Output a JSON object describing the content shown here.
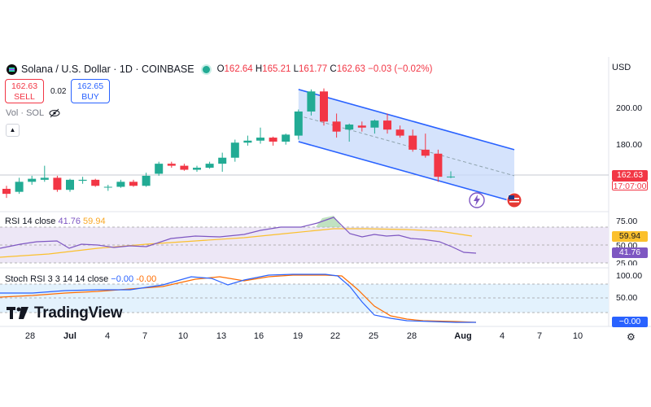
{
  "header": {
    "title": "Solana / U.S. Dollar · 1D · COINBASE",
    "ohlc": {
      "o_key": "O",
      "o_val": "162.64",
      "h_key": "H",
      "h_val": "165.21",
      "l_key": "L",
      "l_val": "161.77",
      "c_key": "C",
      "c_val": "162.63",
      "change": "−0.03 (−0.02%)"
    },
    "currency": "USD"
  },
  "trade": {
    "sell_price": "162.63",
    "sell_label": "SELL",
    "spread": "0.02",
    "buy_price": "162.65",
    "buy_label": "BUY"
  },
  "volume_label": "Vol · SOL",
  "price_axis": {
    "ticks": [
      "200.00",
      "180.00"
    ],
    "last_price": "162.63",
    "countdown": "17:07:00"
  },
  "rsi": {
    "label": "RSI",
    "params": "14 close",
    "value": "41.76",
    "ma_value": "59.94",
    "axis": [
      "75.00",
      "50.00",
      "25.00"
    ]
  },
  "stoch": {
    "label": "Stoch RSI",
    "params": "3 3 14 14 close",
    "k_value": "−0.00",
    "d_value": "-0.00",
    "axis": [
      "100.00",
      "50.00"
    ],
    "tag": "−0.00"
  },
  "brand": "TradingView",
  "x_axis": [
    "28",
    "Jul",
    "4",
    "7",
    "10",
    "13",
    "16",
    "19",
    "22",
    "25",
    "28",
    "Aug",
    "4",
    "7",
    "10"
  ],
  "colors": {
    "up": "#22ab94",
    "down": "#f23645",
    "rsi": "#7e57c2",
    "rsi_ma": "#fbc02d",
    "stoch_k": "#2962ff",
    "stoch_d": "#ff6d00",
    "channel_fill": "#c7d9fb",
    "channel_line": "#2962ff"
  },
  "icons": [
    "solana-logo-icon",
    "live-status-icon",
    "eye-off-icon",
    "chevron-up-icon",
    "lightning-icon",
    "us-flag-icon",
    "gear-icon",
    "tradingview-logo-icon"
  ],
  "chart_data": {
    "type": "candlestick",
    "candles": [
      {
        "o": 156.5,
        "h": 158.0,
        "l": 152.0,
        "c": 154.0
      },
      {
        "o": 155.0,
        "h": 162.0,
        "l": 154.0,
        "c": 160.0
      },
      {
        "o": 160.0,
        "h": 163.0,
        "l": 158.5,
        "c": 161.5
      },
      {
        "o": 161.0,
        "h": 168.0,
        "l": 160.0,
        "c": 162.0
      },
      {
        "o": 162.0,
        "h": 163.0,
        "l": 155.0,
        "c": 156.0
      },
      {
        "o": 156.0,
        "h": 161.5,
        "l": 155.0,
        "c": 161.0
      },
      {
        "o": 160.5,
        "h": 162.5,
        "l": 159.0,
        "c": 161.0
      },
      {
        "o": 161.0,
        "h": 161.5,
        "l": 157.5,
        "c": 158.0
      },
      {
        "o": 157.5,
        "h": 158.5,
        "l": 155.5,
        "c": 157.5
      },
      {
        "o": 157.5,
        "h": 161.0,
        "l": 157.0,
        "c": 160.0
      },
      {
        "o": 160.0,
        "h": 161.0,
        "l": 157.5,
        "c": 158.0
      },
      {
        "o": 158.0,
        "h": 164.5,
        "l": 157.5,
        "c": 163.0
      },
      {
        "o": 164.0,
        "h": 170.0,
        "l": 163.0,
        "c": 169.0
      },
      {
        "o": 169.0,
        "h": 170.0,
        "l": 167.0,
        "c": 168.0
      },
      {
        "o": 168.0,
        "h": 169.0,
        "l": 165.5,
        "c": 166.0
      },
      {
        "o": 166.0,
        "h": 168.0,
        "l": 165.0,
        "c": 167.0
      },
      {
        "o": 167.0,
        "h": 170.0,
        "l": 166.5,
        "c": 169.0
      },
      {
        "o": 169.0,
        "h": 174.5,
        "l": 165.0,
        "c": 172.0
      },
      {
        "o": 172.0,
        "h": 181.0,
        "l": 170.0,
        "c": 179.5
      },
      {
        "o": 179.5,
        "h": 183.0,
        "l": 178.0,
        "c": 180.5
      },
      {
        "o": 180.5,
        "h": 187.0,
        "l": 179.0,
        "c": 182.0
      },
      {
        "o": 182.0,
        "h": 182.5,
        "l": 178.0,
        "c": 180.0
      },
      {
        "o": 180.0,
        "h": 184.0,
        "l": 178.5,
        "c": 183.5
      },
      {
        "o": 183.0,
        "h": 196.0,
        "l": 181.0,
        "c": 195.0
      },
      {
        "o": 195.0,
        "h": 206.0,
        "l": 193.0,
        "c": 205.0
      },
      {
        "o": 205.0,
        "h": 206.5,
        "l": 188.0,
        "c": 190.0
      },
      {
        "o": 190.0,
        "h": 194.0,
        "l": 182.0,
        "c": 185.0
      },
      {
        "o": 186.0,
        "h": 189.0,
        "l": 180.0,
        "c": 188.5
      },
      {
        "o": 188.0,
        "h": 190.0,
        "l": 185.0,
        "c": 187.0
      },
      {
        "o": 187.0,
        "h": 191.0,
        "l": 184.0,
        "c": 190.5
      },
      {
        "o": 190.5,
        "h": 194.0,
        "l": 184.0,
        "c": 186.0
      },
      {
        "o": 186.0,
        "h": 188.0,
        "l": 182.0,
        "c": 183.0
      },
      {
        "o": 183.0,
        "h": 186.0,
        "l": 175.0,
        "c": 176.0
      },
      {
        "o": 176.0,
        "h": 184.0,
        "l": 172.0,
        "c": 173.0
      },
      {
        "o": 174.0,
        "h": 176.0,
        "l": 160.0,
        "c": 162.5
      },
      {
        "o": 162.6,
        "h": 165.2,
        "l": 161.8,
        "c": 162.6
      }
    ],
    "channel": {
      "upper": [
        [
          23,
          206
        ],
        [
          40,
          176
        ]
      ],
      "lower": [
        [
          23,
          180
        ],
        [
          40,
          150
        ]
      ],
      "mid": [
        [
          23,
          193
        ],
        [
          40,
          163
        ]
      ]
    },
    "price_range": [
      150,
      210
    ]
  }
}
